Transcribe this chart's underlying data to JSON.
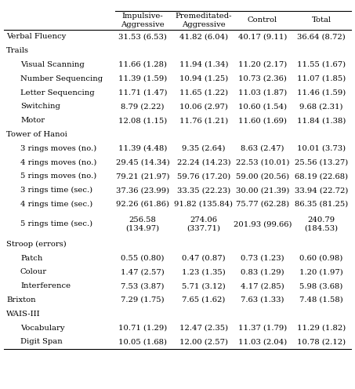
{
  "col_headers": [
    "Impulsive-\nAggressive",
    "Premeditated-\nAggressive",
    "Control",
    "Total"
  ],
  "rows": [
    {
      "label": "Verbal Fluency",
      "indent": 0,
      "section": false,
      "values": [
        "31.53 (6.53)",
        "41.82 (6.04)",
        "40.17 (9.11)",
        "36.64 (8.72)"
      ]
    },
    {
      "label": "Trails",
      "indent": 0,
      "section": true,
      "values": [
        "",
        "",
        "",
        ""
      ]
    },
    {
      "label": "Visual Scanning",
      "indent": 1,
      "section": false,
      "values": [
        "11.66 (1.28)",
        "11.94 (1.34)",
        "11.20 (2.17)",
        "11.55 (1.67)"
      ]
    },
    {
      "label": "Number Sequencing",
      "indent": 1,
      "section": false,
      "values": [
        "11.39 (1.59)",
        "10.94 (1.25)",
        "10.73 (2.36)",
        "11.07 (1.85)"
      ]
    },
    {
      "label": "Letter Sequencing",
      "indent": 1,
      "section": false,
      "values": [
        "11.71 (1.47)",
        "11.65 (1.22)",
        "11.03 (1.87)",
        "11.46 (1.59)"
      ]
    },
    {
      "label": "Switching",
      "indent": 1,
      "section": false,
      "values": [
        "8.79 (2.22)",
        "10.06 (2.97)",
        "10.60 (1.54)",
        "9.68 (2.31)"
      ]
    },
    {
      "label": "Motor",
      "indent": 1,
      "section": false,
      "values": [
        "12.08 (1.15)",
        "11.76 (1.21)",
        "11.60 (1.69)",
        "11.84 (1.38)"
      ]
    },
    {
      "label": "Tower of Hanoi",
      "indent": 0,
      "section": true,
      "values": [
        "",
        "",
        "",
        ""
      ]
    },
    {
      "label": "3 rings moves (no.)",
      "indent": 1,
      "section": false,
      "values": [
        "11.39 (4.48)",
        "9.35 (2.64)",
        "8.63 (2.47)",
        "10.01 (3.73)"
      ]
    },
    {
      "label": "4 rings moves (no.)",
      "indent": 1,
      "section": false,
      "values": [
        "29.45 (14.34)",
        "22.24 (14.23)",
        "22.53 (10.01)",
        "25.56 (13.27)"
      ]
    },
    {
      "label": "5 rings moves (no.)",
      "indent": 1,
      "section": false,
      "values": [
        "79.21 (21.97)",
        "59.76 (17.20)",
        "59.00 (20.56)",
        "68.19 (22.68)"
      ]
    },
    {
      "label": "3 rings time (sec.)",
      "indent": 1,
      "section": false,
      "values": [
        "37.36 (23.99)",
        "33.35 (22.23)",
        "30.00 (21.39)",
        "33.94 (22.72)"
      ]
    },
    {
      "label": "4 rings time (sec.)",
      "indent": 1,
      "section": false,
      "values": [
        "92.26 (61.86)",
        "91.82 (135.84)",
        "75.77 (62.28)",
        "86.35 (81.25)"
      ]
    },
    {
      "label": "5 rings time (sec.)",
      "indent": 1,
      "section": false,
      "multiline": true,
      "values": [
        "256.58\n(134.97)",
        "274.06\n(337.71)",
        "201.93 (99.66)",
        "240.79\n(184.53)"
      ]
    },
    {
      "label": "Stroop (errors)",
      "indent": 0,
      "section": true,
      "values": [
        "",
        "",
        "",
        ""
      ]
    },
    {
      "label": "Patch",
      "indent": 1,
      "section": false,
      "values": [
        "0.55 (0.80)",
        "0.47 (0.87)",
        "0.73 (1.23)",
        "0.60 (0.98)"
      ]
    },
    {
      "label": "Colour",
      "indent": 1,
      "section": false,
      "values": [
        "1.47 (2.57)",
        "1.23 (1.35)",
        "0.83 (1.29)",
        "1.20 (1.97)"
      ]
    },
    {
      "label": "Interference",
      "indent": 1,
      "section": false,
      "values": [
        "7.53 (3.87)",
        "5.71 (3.12)",
        "4.17 (2.85)",
        "5.98 (3.68)"
      ]
    },
    {
      "label": "Brixton",
      "indent": 0,
      "section": false,
      "values": [
        "7.29 (1.75)",
        "7.65 (1.62)",
        "7.63 (1.33)",
        "7.48 (1.58)"
      ]
    },
    {
      "label": "WAIS-III",
      "indent": 0,
      "section": true,
      "values": [
        "",
        "",
        "",
        ""
      ]
    },
    {
      "label": "Vocabulary",
      "indent": 1,
      "section": false,
      "values": [
        "10.71 (1.29)",
        "12.47 (2.35)",
        "11.37 (1.79)",
        "11.29 (1.82)"
      ]
    },
    {
      "label": "Digit Span",
      "indent": 1,
      "section": false,
      "values": [
        "10.05 (1.68)",
        "12.00 (2.57)",
        "11.03 (2.04)",
        "10.78 (2.12)"
      ]
    }
  ],
  "bg_color": "#ffffff",
  "text_color": "#000000",
  "font_size": 7.2,
  "header_font_size": 7.2
}
